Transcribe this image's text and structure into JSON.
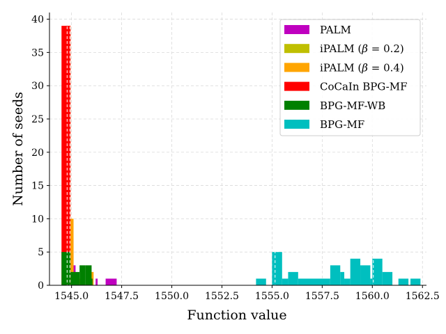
{
  "chart_data": {
    "type": "bar",
    "title": "",
    "xlabel": "Function value",
    "ylabel": "Number of seeds",
    "xlim": [
      1543.9,
      1562.7
    ],
    "ylim": [
      0,
      41
    ],
    "xticks": [
      "1545.0",
      "1547.5",
      "1550.0",
      "1552.5",
      "1555.0",
      "1557.5",
      "1560.0",
      "1562.5"
    ],
    "xtick_values": [
      1545.0,
      1547.5,
      1550.0,
      1552.5,
      1555.0,
      1557.5,
      1560.0,
      1562.5
    ],
    "yticks": [
      "0",
      "5",
      "10",
      "15",
      "20",
      "25",
      "30",
      "35",
      "40"
    ],
    "ytick_values": [
      0,
      5,
      10,
      15,
      20,
      25,
      30,
      35,
      40
    ],
    "grid": true,
    "legend_position": "top-right",
    "series": [
      {
        "name": "PALM",
        "color": "#bf00bf",
        "bars": [
          {
            "x0": 1544.7,
            "x1": 1544.85,
            "value": 39
          },
          {
            "x0": 1545.0,
            "x1": 1545.1,
            "value": 7
          },
          {
            "x0": 1545.1,
            "x1": 1545.2,
            "value": 3
          },
          {
            "x0": 1545.75,
            "x1": 1545.85,
            "value": 2
          },
          {
            "x0": 1546.2,
            "x1": 1546.3,
            "value": 1
          },
          {
            "x0": 1546.7,
            "x1": 1547.25,
            "value": 1
          }
        ]
      },
      {
        "name": "iPALM ($\\beta = 0.2$)",
        "label_prefix": "iPALM (",
        "label_beta": "β",
        "label_suffix": " = 0.2)",
        "color": "#bfbf00",
        "bars": [
          {
            "x0": 1544.75,
            "x1": 1544.9,
            "value": 39
          },
          {
            "x0": 1545.0,
            "x1": 1545.1,
            "value": 5
          }
        ]
      },
      {
        "name": "iPALM ($\\beta = 0.4$)",
        "label_prefix": "iPALM (",
        "label_beta": "β",
        "label_suffix": " = 0.4)",
        "color": "#ffa500",
        "bars": [
          {
            "x0": 1544.85,
            "x1": 1544.95,
            "value": 39
          },
          {
            "x0": 1544.95,
            "x1": 1545.1,
            "value": 10
          },
          {
            "x0": 1544.8,
            "x1": 1545.0,
            "value": 8
          },
          {
            "x0": 1545.0,
            "x1": 1545.2,
            "value": 2
          },
          {
            "x0": 1545.2,
            "x1": 1545.4,
            "value": 1
          },
          {
            "x0": 1545.35,
            "x1": 1545.45,
            "value": 1
          },
          {
            "x0": 1545.95,
            "x1": 1546.1,
            "value": 2
          }
        ]
      },
      {
        "name": "CoCaIn BPG-MF",
        "color": "#ff0000",
        "bars": [
          {
            "x0": 1544.5,
            "x1": 1544.95,
            "value": 39
          }
        ]
      },
      {
        "name": "BPG-MF-WB",
        "color": "#008000",
        "bars": [
          {
            "x0": 1544.5,
            "x1": 1544.95,
            "value": 5
          },
          {
            "x0": 1544.95,
            "x1": 1545.4,
            "value": 2
          },
          {
            "x0": 1545.4,
            "x1": 1545.7,
            "value": 3
          },
          {
            "x0": 1545.7,
            "x1": 1546.0,
            "value": 3
          },
          {
            "x0": 1546.0,
            "x1": 1546.05,
            "value": 1
          }
        ]
      },
      {
        "name": "BPG-MF",
        "color": "#00bfbf",
        "bars": [
          {
            "x0": 1554.2,
            "x1": 1554.7,
            "value": 1
          },
          {
            "x0": 1555.0,
            "x1": 1555.5,
            "value": 5
          },
          {
            "x0": 1555.5,
            "x1": 1555.8,
            "value": 1
          },
          {
            "x0": 1555.8,
            "x1": 1556.3,
            "value": 2
          },
          {
            "x0": 1556.3,
            "x1": 1557.9,
            "value": 1
          },
          {
            "x0": 1557.9,
            "x1": 1558.4,
            "value": 3
          },
          {
            "x0": 1558.4,
            "x1": 1558.6,
            "value": 2
          },
          {
            "x0": 1558.6,
            "x1": 1558.9,
            "value": 1
          },
          {
            "x0": 1558.9,
            "x1": 1559.4,
            "value": 4
          },
          {
            "x0": 1559.4,
            "x1": 1559.9,
            "value": 3
          },
          {
            "x0": 1559.9,
            "x1": 1560.0,
            "value": 1
          },
          {
            "x0": 1560.0,
            "x1": 1560.5,
            "value": 4
          },
          {
            "x0": 1560.5,
            "x1": 1561.0,
            "value": 2
          },
          {
            "x0": 1561.3,
            "x1": 1561.8,
            "value": 1
          },
          {
            "x0": 1561.9,
            "x1": 1562.4,
            "value": 1
          }
        ]
      }
    ],
    "median_lines": [
      {
        "series": "CoCaIn BPG-MF",
        "x": 1544.78
      },
      {
        "series": "BPG-MF-WB",
        "x": 1544.92
      },
      {
        "series": "BPG-MF",
        "x": 1555.15
      },
      {
        "series": "BPG-MF",
        "x": 1560.05
      }
    ]
  }
}
